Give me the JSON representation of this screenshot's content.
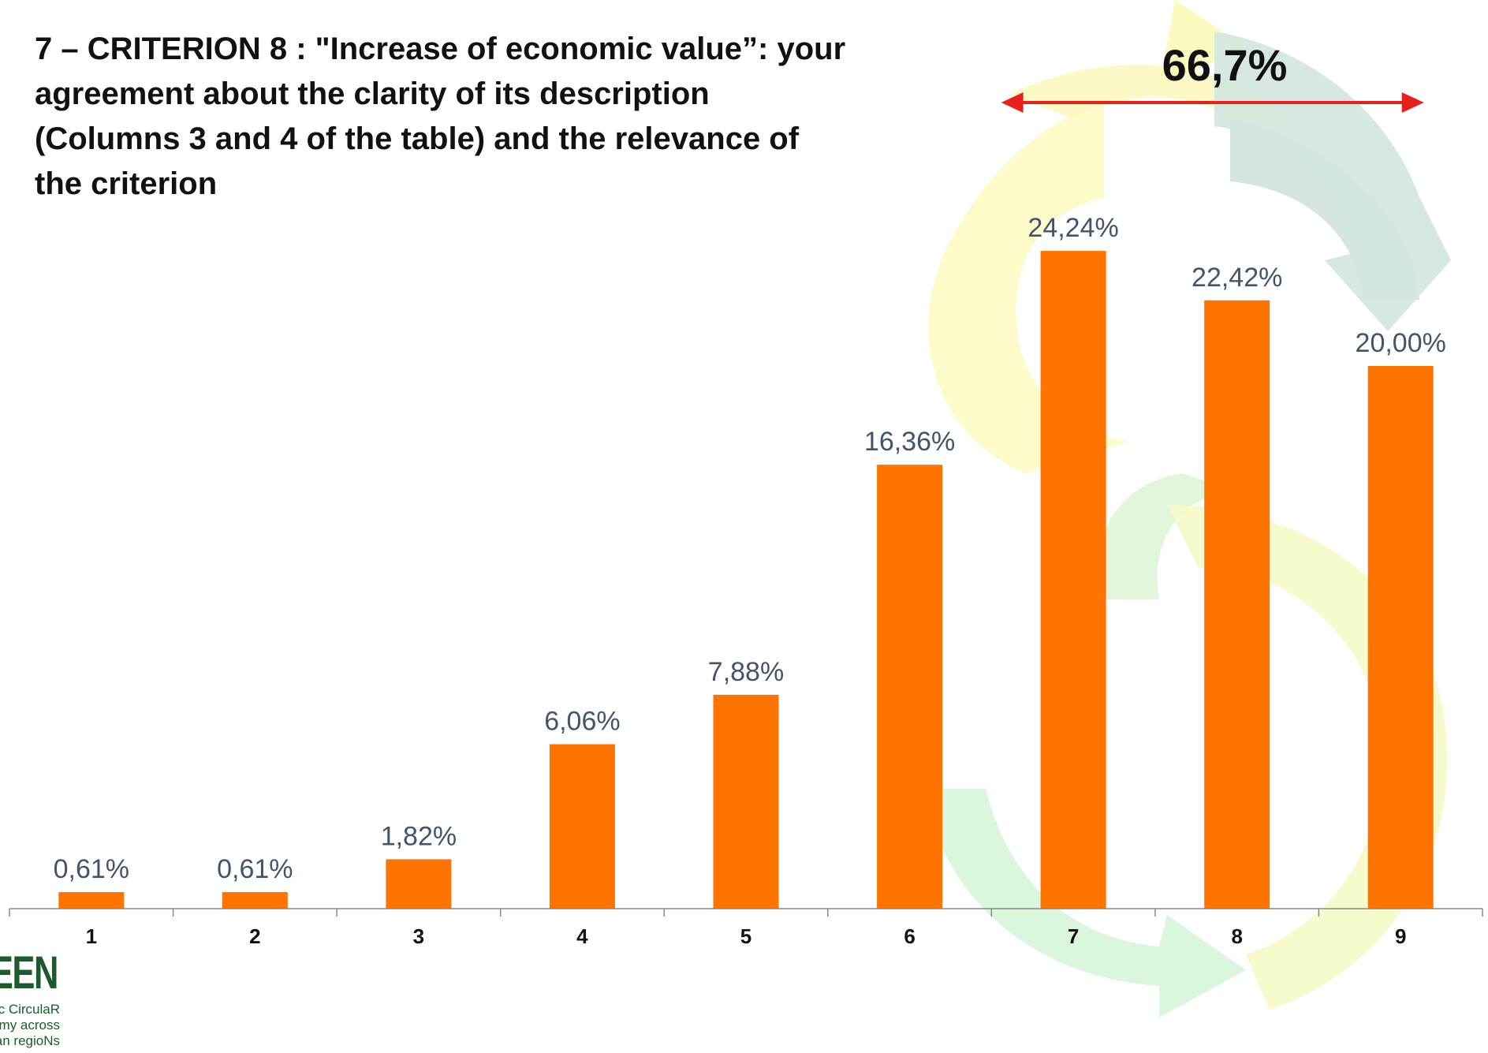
{
  "title_lines": [
    "7 – CRITERION 8 : \"Increase of economic value”: your",
    "agreement about the clarity of its description",
    "(Columns 3 and 4 of the table) and the relevance of",
    "the criterion"
  ],
  "highlight": {
    "label": "66,7%",
    "from_category": "7",
    "to_category": "9",
    "arrow_color": "#e8201c"
  },
  "logo": {
    "word": "REEN",
    "tagline": [
      "rgic CirculaR",
      "omy across",
      "pean regioNs"
    ]
  },
  "chart_data": {
    "type": "bar",
    "categories": [
      "1",
      "2",
      "3",
      "4",
      "5",
      "6",
      "7",
      "8",
      "9"
    ],
    "values": [
      0.61,
      0.61,
      1.82,
      6.06,
      7.88,
      16.36,
      24.24,
      22.42,
      20.0
    ],
    "value_labels": [
      "0,61%",
      "0,61%",
      "1,82%",
      "6,06%",
      "7,88%",
      "16,36%",
      "24,24%",
      "22,42%",
      "20,00%"
    ],
    "ylim": [
      0,
      30
    ],
    "bar_color": "#ff7300",
    "grid": false,
    "title": "",
    "xlabel": "",
    "ylabel": ""
  }
}
